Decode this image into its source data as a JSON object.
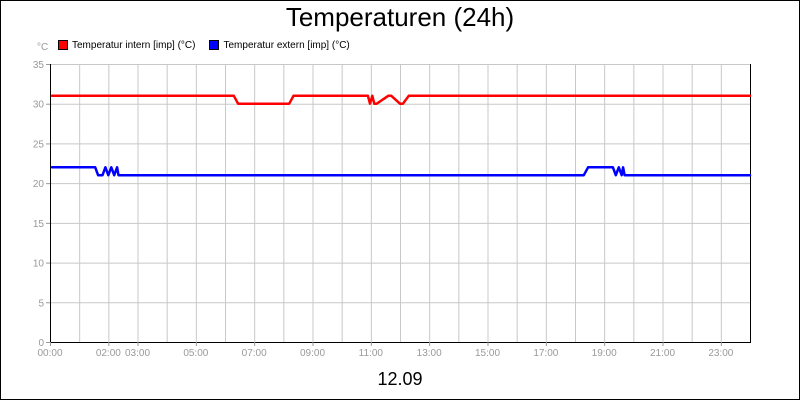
{
  "chart_data": {
    "type": "line",
    "title": "Temperaturen (24h)",
    "unit_label": "°C",
    "date_label": "12.09",
    "xlim": [
      0,
      24
    ],
    "ylim": [
      0,
      35
    ],
    "y_ticks": [
      0,
      5,
      10,
      15,
      20,
      25,
      30,
      35
    ],
    "x_ticks": [
      {
        "t": 0,
        "label": "00:00"
      },
      {
        "t": 2,
        "label": "02:00"
      },
      {
        "t": 3,
        "label": "03:00"
      },
      {
        "t": 5,
        "label": "05:00"
      },
      {
        "t": 7,
        "label": "07:00"
      },
      {
        "t": 9,
        "label": "09:00"
      },
      {
        "t": 11,
        "label": "11:00"
      },
      {
        "t": 13,
        "label": "13:00"
      },
      {
        "t": 15,
        "label": "15:00"
      },
      {
        "t": 17,
        "label": "17:00"
      },
      {
        "t": 19,
        "label": "19:00"
      },
      {
        "t": 21,
        "label": "21:00"
      },
      {
        "t": 23,
        "label": "23:00"
      }
    ],
    "grid": true,
    "legend_position": "top-left",
    "series": [
      {
        "name": "Temperatur intern [imp] (°C)",
        "color": "#ff0000",
        "x": [
          0.07,
          6.3,
          6.45,
          8.2,
          8.35,
          10.9,
          10.97,
          11.05,
          11.12,
          11.2,
          11.6,
          11.7,
          12.0,
          12.1,
          12.3,
          12.4,
          24.0
        ],
        "y": [
          31,
          31,
          30,
          30,
          31,
          31,
          30,
          31,
          30,
          30,
          31,
          31,
          30,
          30,
          31,
          31,
          31
        ]
      },
      {
        "name": "Temperatur extern [imp] (°C)",
        "color": "#0000ff",
        "x": [
          0.07,
          1.55,
          1.65,
          1.8,
          1.9,
          2.0,
          2.1,
          2.2,
          2.3,
          2.35,
          2.4,
          18.3,
          18.45,
          19.3,
          19.4,
          19.5,
          19.6,
          19.65,
          19.7,
          19.75,
          24.0
        ],
        "y": [
          22,
          22,
          21,
          21,
          22,
          21,
          22,
          21,
          22,
          21,
          21,
          21,
          22,
          22,
          21,
          22,
          21,
          22,
          21,
          21,
          21
        ]
      }
    ]
  }
}
